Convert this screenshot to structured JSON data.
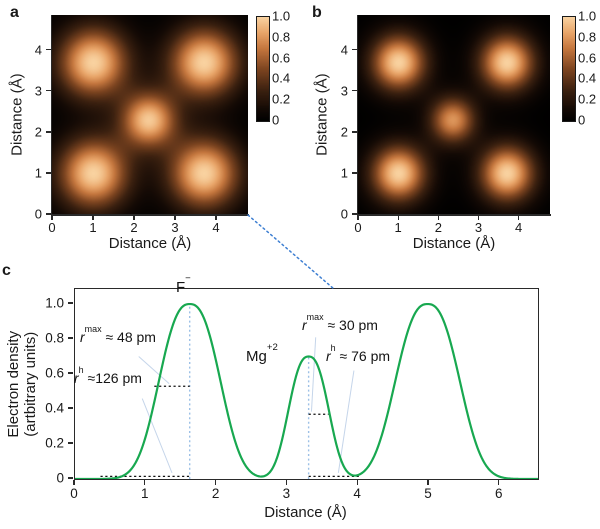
{
  "colors": {
    "curve_green": "#18a850",
    "connector_blue": "#3e7fd2",
    "guide_dotted_blue": "#9cc0e6",
    "leader_blue": "#c5d5ea",
    "dash_black": "#111111",
    "axis_color": "#2a2a2a",
    "colormap_stops": [
      [
        0,
        "#000000"
      ],
      [
        0.12,
        "#140a05"
      ],
      [
        0.3,
        "#3c2110"
      ],
      [
        0.5,
        "#7c4420"
      ],
      [
        0.7,
        "#c4763e"
      ],
      [
        0.85,
        "#e8a468"
      ],
      [
        1,
        "#f9d2a0"
      ]
    ]
  },
  "panel_a": {
    "letter": "a",
    "x_label": "Distance (Å)",
    "y_label": "Distance (Å)",
    "x_ticks": [
      "0",
      "1",
      "2",
      "3",
      "4"
    ],
    "y_ticks": [
      "0",
      "1",
      "2",
      "3",
      "4"
    ],
    "colorbar_ticks": [
      "1.0",
      "0.8",
      "0.6",
      "0.4",
      "0.2",
      "0"
    ]
  },
  "panel_b": {
    "letter": "b",
    "x_label": "Distance (Å)",
    "y_label": "Distance (Å)",
    "x_ticks": [
      "0",
      "1",
      "2",
      "3",
      "4"
    ],
    "y_ticks": [
      "0",
      "1",
      "2",
      "3",
      "4"
    ],
    "colorbar_ticks": [
      "1.0",
      "0.8",
      "0.6",
      "0.4",
      "0.2",
      "0"
    ]
  },
  "panel_c": {
    "letter": "c",
    "x_label": "Distance (Å)",
    "y_label_line1": "Electron density",
    "y_label_line2": "(artbitrary units)",
    "x_ticks": [
      "0",
      "1",
      "2",
      "3",
      "4",
      "5",
      "6"
    ],
    "y_ticks": [
      "0",
      "0.2",
      "0.4",
      "0.6",
      "0.8",
      "1.0"
    ],
    "labels": {
      "f_ion": {
        "base": "F",
        "sup": "−"
      },
      "mg_ion": {
        "base": "Mg",
        "sup": "+2"
      },
      "rmax_f": {
        "pre": "r",
        "sup": "max",
        "rest": " ≈ 48 pm"
      },
      "rh_f": {
        "pre": "r",
        "sup": "h",
        "rest": " ≈126 pm"
      },
      "rmax_mg": {
        "pre": "r",
        "sup": "max",
        "rest": " ≈ 30 pm"
      },
      "rh_mg": {
        "pre": "r",
        "sup": "h",
        "rest": " ≈ 76 pm"
      }
    }
  },
  "chart_data": [
    {
      "type": "heatmap",
      "panel": "a",
      "xlabel": "Distance (Å)",
      "ylabel": "Distance (Å)",
      "xlim": [
        0,
        4.78
      ],
      "ylim": [
        0,
        4.85
      ],
      "zlim": [
        0,
        1
      ],
      "colorbar_ticks": [
        1.0,
        0.8,
        0.6,
        0.4,
        0.2,
        0
      ],
      "peaks": [
        {
          "x": 1.0,
          "y": 1.0,
          "amp": 1.0,
          "sigma": 0.6
        },
        {
          "x": 1.0,
          "y": 3.7,
          "amp": 1.0,
          "sigma": 0.6
        },
        {
          "x": 3.7,
          "y": 1.0,
          "amp": 1.0,
          "sigma": 0.6
        },
        {
          "x": 3.7,
          "y": 3.7,
          "amp": 1.0,
          "sigma": 0.6
        },
        {
          "x": 2.35,
          "y": 2.3,
          "amp": 0.95,
          "sigma": 0.48
        }
      ]
    },
    {
      "type": "heatmap",
      "panel": "b",
      "xlabel": "Distance (Å)",
      "ylabel": "Distance (Å)",
      "xlim": [
        0,
        4.78
      ],
      "ylim": [
        0,
        4.85
      ],
      "zlim": [
        0,
        1
      ],
      "colorbar_ticks": [
        1.0,
        0.8,
        0.6,
        0.4,
        0.2,
        0
      ],
      "peaks": [
        {
          "x": 1.0,
          "y": 1.0,
          "amp": 1.0,
          "sigma": 0.48
        },
        {
          "x": 1.0,
          "y": 3.7,
          "amp": 1.0,
          "sigma": 0.48
        },
        {
          "x": 3.7,
          "y": 1.0,
          "amp": 1.0,
          "sigma": 0.48
        },
        {
          "x": 3.7,
          "y": 3.7,
          "amp": 1.0,
          "sigma": 0.48
        },
        {
          "x": 2.35,
          "y": 2.3,
          "amp": 0.8,
          "sigma": 0.4
        }
      ]
    },
    {
      "type": "line",
      "panel": "c",
      "xlabel": "Distance (Å)",
      "ylabel": "Electron density (artbitrary units)",
      "xlim": [
        0,
        6.54
      ],
      "ylim": [
        0,
        1.086
      ],
      "grid": false,
      "series": [
        {
          "name": "electron density profile",
          "color": "#18a850",
          "model": "sum of generalized gaussians (exponent 2.5)",
          "components": [
            {
              "center": 1.62,
              "height": 1.0,
              "sigma": 0.41,
              "ion": "F−",
              "r_max_pm": 48,
              "r_h_pm": 126
            },
            {
              "center": 3.3,
              "height": 0.7,
              "sigma": 0.27,
              "ion": "Mg+2",
              "r_max_pm": 30,
              "r_h_pm": 76
            },
            {
              "center": 4.98,
              "height": 1.0,
              "sigma": 0.43
            }
          ]
        }
      ],
      "guides": {
        "vertical_dotted": [
          {
            "x": 1.62,
            "y0": 0,
            "y1": 1.0
          },
          {
            "x": 3.3,
            "y0": 0,
            "y1": 0.7
          }
        ],
        "horizontal_dashed": [
          {
            "y": 0.53,
            "x0": 1.12,
            "x1": 1.62
          },
          {
            "y": 0.015,
            "x0": 0.36,
            "x1": 1.62
          },
          {
            "y": 0.37,
            "x0": 3.3,
            "x1": 3.58
          },
          {
            "y": 0.015,
            "x0": 3.3,
            "x1": 4.03
          }
        ],
        "leaders": [
          {
            "x0": 0.9,
            "y0": 0.7,
            "x1": 1.33,
            "y1": 0.545
          },
          {
            "x0": 0.95,
            "y0": 0.46,
            "x1": 1.37,
            "y1": 0.035
          },
          {
            "x0": 3.4,
            "y0": 0.81,
            "x1": 3.34,
            "y1": 0.385
          },
          {
            "x0": 3.94,
            "y0": 0.62,
            "x1": 3.72,
            "y1": 0.035
          }
        ]
      }
    }
  ]
}
